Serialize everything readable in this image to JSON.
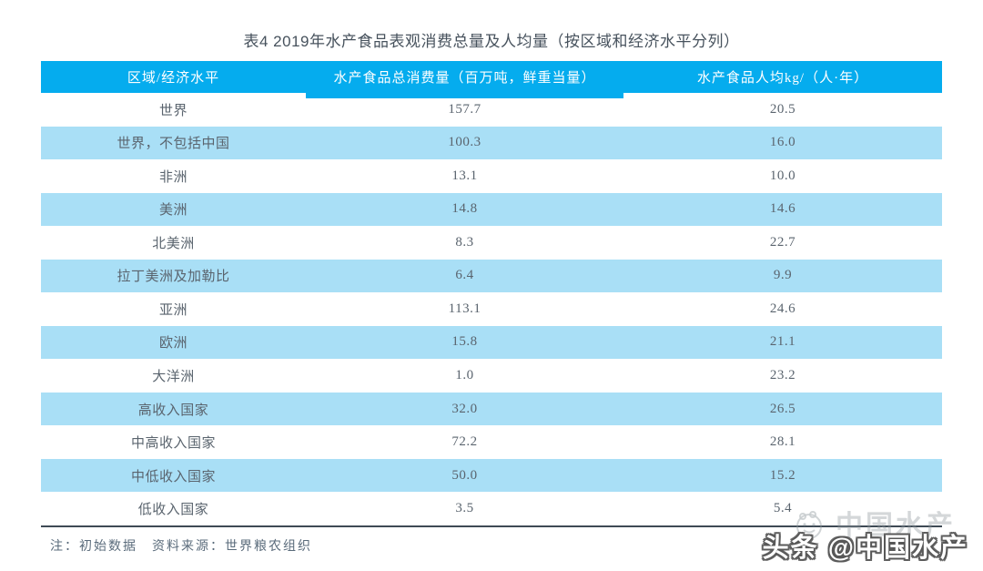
{
  "title": "表4 2019年水产食品表观消费总量及人均量（按区域和经济水平分列）",
  "table": {
    "columns": [
      "区域/经济水平",
      "水产食品总消费量（百万吨，鲜重当量）",
      "水产食品人均kg/（人·年）"
    ],
    "rows": [
      {
        "region": "世界",
        "total": "157.7",
        "per_capita": "20.5"
      },
      {
        "region": "世界，不包括中国",
        "total": "100.3",
        "per_capita": "16.0"
      },
      {
        "region": "非洲",
        "total": "13.1",
        "per_capita": "10.0"
      },
      {
        "region": "美洲",
        "total": "14.8",
        "per_capita": "14.6"
      },
      {
        "region": "北美洲",
        "total": "8.3",
        "per_capita": "22.7"
      },
      {
        "region": "拉丁美洲及加勒比",
        "total": "6.4",
        "per_capita": "9.9"
      },
      {
        "region": "亚洲",
        "total": "113.1",
        "per_capita": "24.6"
      },
      {
        "region": "欧洲",
        "total": "15.8",
        "per_capita": "21.1"
      },
      {
        "region": "大洋洲",
        "total": "1.0",
        "per_capita": "23.2"
      },
      {
        "region": "高收入国家",
        "total": "32.0",
        "per_capita": "26.5"
      },
      {
        "region": "中高收入国家",
        "total": "72.2",
        "per_capita": "28.1"
      },
      {
        "region": "中低收入国家",
        "total": "50.0",
        "per_capita": "15.2"
      },
      {
        "region": "低收入国家",
        "total": "3.5",
        "per_capita": "5.4"
      }
    ]
  },
  "note": "注：初始数据　资料来源：世界粮农组织",
  "watermark": {
    "faint_text": "中国水产",
    "bold_text": "头条 @中国水产",
    "logo_icon": "fish-logo-icon"
  },
  "colors": {
    "header_bg": "#05ACEE",
    "row_alt": "#A9DFF6",
    "border": "#3E4A55",
    "title_text": "#47525D",
    "cell_text": "#5A646E",
    "note_text": "#5A6B7B"
  },
  "chart_data": {
    "type": "table",
    "title": "表4 2019年水产食品表观消费总量及人均量（按区域和经济水平分列）",
    "columns": [
      "区域/经济水平",
      "水产食品总消费量（百万吨，鲜重当量）",
      "水产食品人均kg/（人·年）"
    ],
    "categories": [
      "世界",
      "世界，不包括中国",
      "非洲",
      "美洲",
      "北美洲",
      "拉丁美洲及加勒比",
      "亚洲",
      "欧洲",
      "大洋洲",
      "高收入国家",
      "中高收入国家",
      "中低收入国家",
      "低收入国家"
    ],
    "series": [
      {
        "name": "水产食品总消费量（百万吨，鲜重当量）",
        "values": [
          157.7,
          100.3,
          13.1,
          14.8,
          8.3,
          6.4,
          113.1,
          15.8,
          1.0,
          32.0,
          72.2,
          50.0,
          3.5
        ]
      },
      {
        "name": "水产食品人均kg/（人·年）",
        "values": [
          20.5,
          16.0,
          10.0,
          14.6,
          22.7,
          9.9,
          24.6,
          21.1,
          23.2,
          26.5,
          28.1,
          15.2,
          5.4
        ]
      }
    ],
    "note": "注：初始数据　资料来源：世界粮农组织"
  }
}
